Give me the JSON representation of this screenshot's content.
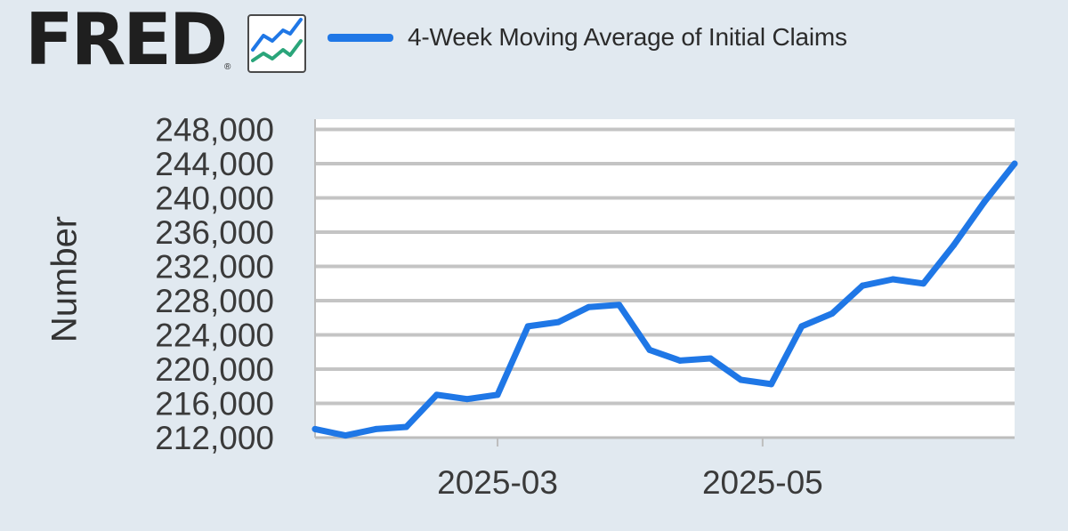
{
  "brand": {
    "logo_text": "FRED",
    "registered_mark": "®",
    "logo_icon": "line-chart-icon"
  },
  "chart_data": {
    "type": "line",
    "title": "",
    "xlabel": "",
    "ylabel": "Number",
    "legend_position": "top",
    "grid": true,
    "x": [
      "2025-01-18",
      "2025-01-25",
      "2025-02-01",
      "2025-02-08",
      "2025-02-15",
      "2025-02-22",
      "2025-03-01",
      "2025-03-08",
      "2025-03-15",
      "2025-03-22",
      "2025-03-29",
      "2025-04-05",
      "2025-04-12",
      "2025-04-19",
      "2025-04-26",
      "2025-05-03",
      "2025-05-10",
      "2025-05-17",
      "2025-05-24",
      "2025-05-31",
      "2025-06-07",
      "2025-06-14",
      "2025-06-21",
      "2025-06-28"
    ],
    "series": [
      {
        "name": "4-Week Moving Average of Initial Claims",
        "color": "#1f77e6",
        "values": [
          213000,
          212250,
          213000,
          213250,
          217000,
          216500,
          217000,
          225000,
          225500,
          227250,
          227500,
          222250,
          221000,
          221250,
          218750,
          218250,
          225000,
          226500,
          229750,
          230500,
          230000,
          234500,
          239500,
          244000
        ]
      }
    ],
    "ylim": [
      212000,
      249200
    ],
    "yticks": [
      212000,
      216000,
      220000,
      224000,
      228000,
      232000,
      236000,
      240000,
      244000,
      248000
    ],
    "ytick_labels": [
      "212,000",
      "216,000",
      "220,000",
      "224,000",
      "228,000",
      "232,000",
      "236,000",
      "240,000",
      "244,000",
      "248,000"
    ],
    "xlim": [
      "2025-01-18",
      "2025-06-28"
    ],
    "xticks": [
      "2025-03-01",
      "2025-05-01"
    ],
    "xtick_labels": [
      "2025-03",
      "2025-05"
    ]
  }
}
